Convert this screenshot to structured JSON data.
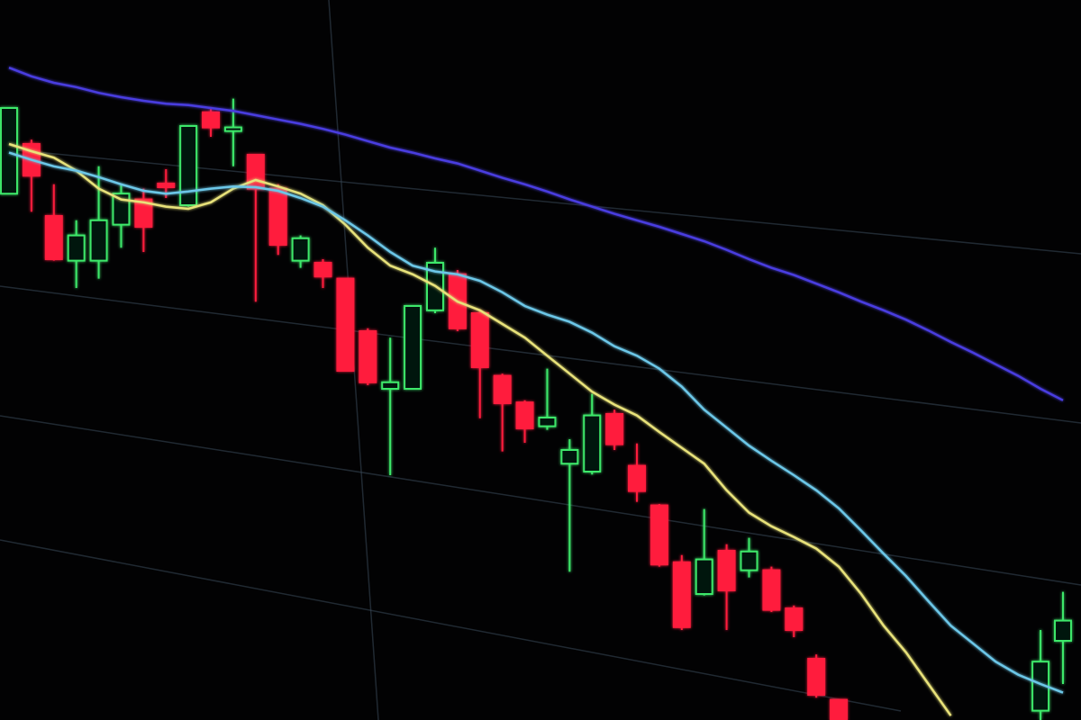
{
  "chart_data": {
    "type": "candlestick",
    "categories": [
      null,
      null,
      null,
      null,
      null,
      null,
      null,
      null,
      null,
      null,
      null,
      null,
      null,
      null,
      null,
      null,
      null,
      null,
      null,
      null,
      null,
      null,
      null,
      null,
      null,
      null,
      null,
      null,
      null,
      null,
      null,
      null,
      null,
      null,
      null,
      null,
      null,
      null,
      null,
      null,
      null,
      null,
      null,
      null,
      null,
      null,
      null,
      null
    ],
    "open": [
      73.1,
      80,
      70,
      63.8,
      63.8,
      68.8,
      72.3,
      74.5,
      71.5,
      84.4,
      81.8,
      78.5,
      73.8,
      63.8,
      63.5,
      61.3,
      54,
      46,
      46,
      56.9,
      61.9,
      56.5,
      47.8,
      44.1,
      40.8,
      35.6,
      34.5,
      42.5,
      35.3,
      29.8,
      21.9,
      17.5,
      23.5,
      20.8,
      20.8,
      15.5,
      8.5,
      2.8,
      null,
      null,
      null,
      null,
      null,
      null,
      null,
      null,
      1.3,
      11
    ],
    "high": [
      85,
      80.6,
      74.4,
      69.4,
      76.9,
      74.4,
      73.8,
      76.5,
      82.5,
      85,
      86.3,
      78.5,
      74.4,
      67.3,
      64,
      61.3,
      54.4,
      53.1,
      57.5,
      65.6,
      62.5,
      56.9,
      48.1,
      44.4,
      48.8,
      39,
      45.3,
      43.1,
      38.4,
      30,
      22.9,
      29.3,
      24.4,
      25.3,
      21.3,
      15.9,
      9.1,
      2.8,
      null,
      null,
      null,
      null,
      null,
      null,
      null,
      null,
      12.5,
      17.8
    ],
    "low": [
      73.1,
      70.6,
      63.8,
      60,
      61.3,
      65.6,
      65,
      72.5,
      71.3,
      81,
      76.9,
      58.1,
      64.6,
      62.8,
      60,
      48.5,
      46.5,
      34,
      45.9,
      56.5,
      54,
      41.9,
      37.3,
      38.5,
      40.3,
      20.6,
      34.1,
      37.5,
      30.3,
      21.3,
      12.5,
      17.3,
      12.5,
      19.8,
      15,
      11.5,
      3.1,
      0,
      null,
      null,
      null,
      null,
      null,
      null,
      null,
      null,
      0,
      5
    ],
    "close": [
      85,
      75.6,
      64,
      67.3,
      69.4,
      73.1,
      68.5,
      74,
      82.5,
      82.3,
      82.3,
      73.8,
      66,
      66.9,
      61.6,
      48.5,
      46.9,
      46.9,
      57.5,
      63.5,
      54.4,
      49,
      44,
      40.5,
      42,
      37.5,
      42.3,
      38.3,
      31.8,
      21.6,
      12.9,
      22.3,
      18,
      23.4,
      15.3,
      12.5,
      3.5,
      0,
      null,
      null,
      null,
      null,
      null,
      null,
      null,
      null,
      8.1,
      13.8
    ],
    "up_color": "#3ee86a",
    "down_color": "#ff1f3d",
    "series": [
      {
        "color": "#e8e27a",
        "values": [
          80,
          79,
          78.1,
          76.3,
          73.8,
          72.3,
          71.9,
          71.3,
          71,
          71.9,
          73.8,
          75,
          74.1,
          73.1,
          71.5,
          68.8,
          65.6,
          63.1,
          61.9,
          60.3,
          58.1,
          56.9,
          55,
          53.1,
          50.6,
          48.1,
          45.6,
          43.8,
          42.3,
          40,
          37.8,
          35.6,
          31.9,
          28.8,
          26.9,
          25.4,
          23.8,
          21.3,
          17.5,
          13.1,
          9.4,
          5,
          0.6,
          null,
          null,
          null,
          null,
          null
        ]
      },
      {
        "color": "#6cc7e8",
        "values": [
          78.8,
          77.8,
          76.9,
          76.3,
          75.4,
          74.4,
          73.5,
          73.1,
          73.4,
          73.8,
          74.1,
          74,
          73.5,
          72.5,
          71.3,
          69.4,
          67.3,
          65,
          63.1,
          62.3,
          61.9,
          61,
          59.4,
          57.5,
          56.3,
          55.3,
          53.8,
          51.9,
          50.6,
          48.8,
          46.3,
          43.1,
          40.6,
          38.1,
          36,
          34,
          31.9,
          29.4,
          26.3,
          23.1,
          20,
          16.5,
          13.1,
          10.6,
          8.1,
          6.3,
          5,
          3.8
        ]
      },
      {
        "color": "#4a3ee0",
        "values": [
          90.6,
          89.4,
          88.5,
          87.9,
          87.1,
          86.5,
          86,
          85.6,
          85.4,
          85,
          84.6,
          84,
          83.4,
          82.8,
          82.1,
          81.3,
          80.4,
          79.5,
          78.8,
          78,
          77.3,
          76.3,
          75.3,
          74.4,
          73.4,
          72.3,
          71.3,
          70.3,
          69.4,
          68.5,
          67.5,
          66.5,
          65.3,
          64,
          62.8,
          61.8,
          60.6,
          59.4,
          58.1,
          56.9,
          55.6,
          54.1,
          52.5,
          51,
          49.4,
          47.8,
          46,
          44.4
        ]
      }
    ],
    "ylim": [
      0,
      100
    ]
  }
}
